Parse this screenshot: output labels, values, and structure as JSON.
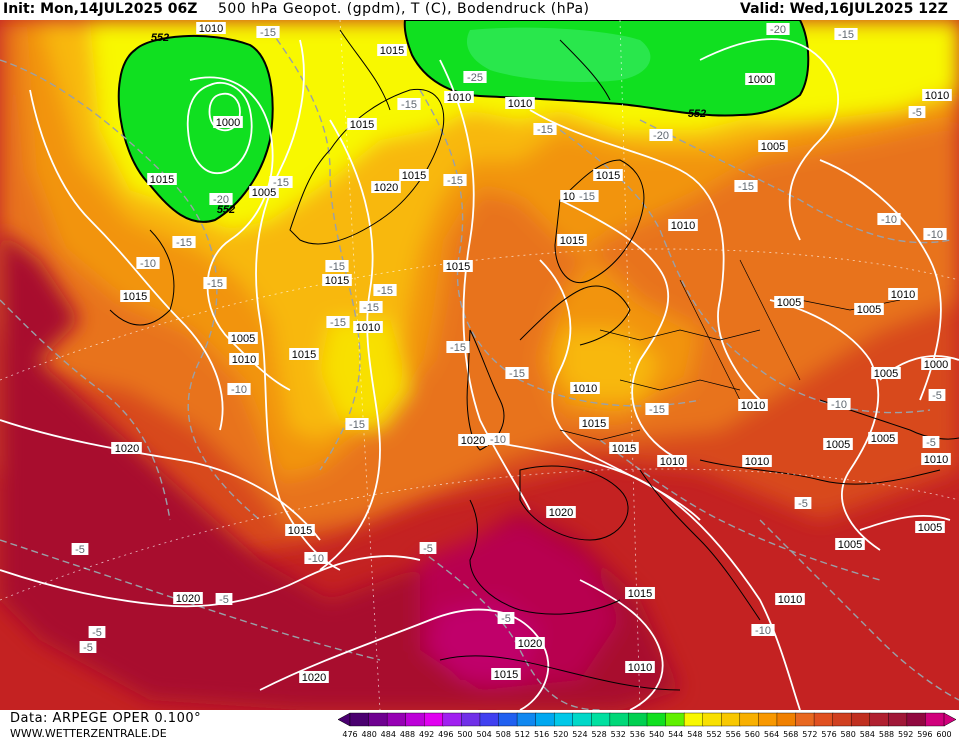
{
  "header": {
    "init": "Init: Mon,14JUL2025 06Z",
    "title": "500 hPa Geopot. (gpdm), T (C), Bodendruck (hPa)",
    "valid": "Valid: Wed,16JUL2025 12Z"
  },
  "footer": {
    "model": "Data: ARPEGE OPER 0.100°",
    "site": "WWW.WETTERZENTRALE.DE"
  },
  "colorbar": {
    "ticks": [
      "476",
      "480",
      "484",
      "488",
      "492",
      "496",
      "500",
      "504",
      "508",
      "512",
      "516",
      "520",
      "524",
      "528",
      "532",
      "536",
      "540",
      "544",
      "548",
      "552",
      "556",
      "560",
      "564",
      "568",
      "572",
      "576",
      "580",
      "584",
      "588",
      "592",
      "596",
      "600"
    ],
    "colors": [
      "#4a0070",
      "#6e0090",
      "#9600b4",
      "#bc00d8",
      "#e000f0",
      "#a020f0",
      "#7030e8",
      "#4040f0",
      "#2060f0",
      "#1088f0",
      "#00a8f0",
      "#00c8e8",
      "#00d8c8",
      "#00e0a0",
      "#00d878",
      "#00d050",
      "#10e020",
      "#60f000",
      "#f8f800",
      "#f8e000",
      "#f8c800",
      "#f8b000",
      "#f89800",
      "#f08000",
      "#e86820",
      "#e05020",
      "#d04020",
      "#c03020",
      "#b02030",
      "#a01838",
      "#900840",
      "#d0007c"
    ]
  },
  "map": {
    "legend_unit_note": "",
    "geopotential_labels": [
      "552",
      "552",
      "552"
    ],
    "pressure_labels": [
      "1010",
      "1015",
      "1015",
      "1010",
      "1010",
      "1000",
      "1000",
      "1015",
      "1005",
      "1015",
      "1020",
      "1015",
      "1015",
      "1010",
      "1005",
      "1015",
      "1020",
      "1015",
      "1010",
      "1015",
      "1015",
      "1010",
      "1005",
      "1010",
      "1010",
      "1015",
      "1005",
      "1010",
      "1010",
      "1020",
      "1015",
      "1015",
      "1010",
      "1010",
      "1010",
      "1005",
      "1005",
      "1005",
      "1000",
      "1005",
      "1020",
      "1020",
      "1015",
      "1005",
      "1005",
      "1010",
      "1020",
      "1020",
      "1015",
      "1010",
      "1015",
      "1010",
      "1020"
    ],
    "temperature_labels": [
      "-15",
      "-20",
      "-25",
      "-20",
      "-15",
      "-15",
      "-15",
      "-20",
      "-15",
      "-15",
      "-15",
      "-10",
      "-10",
      "-15",
      "-15",
      "-15",
      "-15",
      "-15",
      "-10",
      "-15",
      "-10",
      "-15",
      "-15",
      "-15",
      "-10",
      "-5",
      "-10",
      "-5",
      "-5",
      "-5",
      "-5",
      "-10",
      "-5",
      "-5",
      "-5",
      "-5",
      "-15",
      "-15",
      "-10",
      "-5"
    ],
    "colors": {
      "deep_magenta": "#c0006a",
      "crimson": "#a8102e",
      "dark_red": "#c42222",
      "red_orange": "#d84a1e",
      "orange": "#e8731a",
      "light_orange": "#f29410",
      "amber": "#f8b808",
      "yellow": "#f8e000",
      "bright_yellow": "#f8f800",
      "green": "#10e020",
      "light_green": "#30e858",
      "teal_green": "#00d878",
      "coast": "#000000",
      "isobar": "#ffffff",
      "isotherm": "#9aa0a8"
    }
  }
}
